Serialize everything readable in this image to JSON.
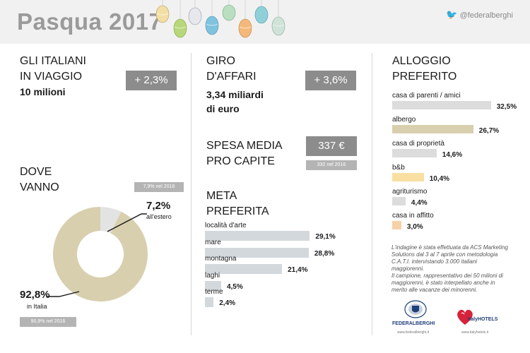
{
  "header": {
    "title": "Pasqua 2017",
    "twitter_handle": "@federalberghi"
  },
  "colors": {
    "bar_grey": "#d3d8dd",
    "bar_beige": "#d8cfae",
    "bar_yellow": "#f9dfa2",
    "bar_orange": "#f7d1a8",
    "bar_light": "#dcdcdc",
    "donut_main": "#d8cfae",
    "donut_small": "#e3e3e3",
    "pill_dark": "#8c8c8c",
    "pill_light": "#b4b4b4",
    "title_grey": "#9a9a9a"
  },
  "travelers": {
    "heading_line1": "GLI ITALIANI",
    "heading_line2": "IN VIAGGIO",
    "value": "10 milioni",
    "change": "+ 2,3%"
  },
  "turnover": {
    "heading_line1": "GIRO",
    "heading_line2": "D'AFFARI",
    "value_line1": "3,34 miliardi",
    "value_line2": "di euro",
    "change": "+ 3,6%"
  },
  "spending": {
    "heading_line1": "SPESA MEDIA",
    "heading_line2": "PRO CAPITE",
    "value": "337 €",
    "previous": "332 nel 2016"
  },
  "destination": {
    "heading_line1": "DOVE",
    "heading_line2": "VANNO",
    "abroad_previous": "7,9% nel 2016",
    "italy_previous": "90,9% nel 2016"
  },
  "meta": {
    "heading_line1": "META",
    "heading_line2": "PREFERITA"
  },
  "alloggio": {
    "heading_line1": "ALLOGGIO",
    "heading_line2": "PREFERITO"
  },
  "survey_note": {
    "line1": "L'indagine è stata effettuata da ACS Marketing",
    "line2": "Solutions dal 3 al 7 aprile con metodologia",
    "line3": "C.A.T.I. intervistando 3.000 italiani",
    "line4": "maggiorenni.",
    "line5": "Il campione, rappresentativo dei 50 milioni di",
    "line6": "maggiorenni, è stato interpellato anche in",
    "line7": "merito alle vacanze dei minorenni."
  },
  "logos": {
    "federalberghi": "FEDERALBERGHI",
    "federalberghi_url": "www.federalberghi.it",
    "italyhotels_a": "ItalyHOTELS",
    "italyhotels_url": "www.italyhotels.it"
  },
  "chart_data": [
    {
      "type": "pie",
      "categories": [
        "in Italia",
        "all'estero"
      ],
      "values": [
        92.8,
        7.2
      ],
      "value_labels": [
        "92,8%",
        "7,2%"
      ]
    },
    {
      "type": "bar",
      "categories": [
        "località d'arte",
        "mare",
        "montagna",
        "laghi",
        "terme"
      ],
      "values": [
        29.1,
        28.8,
        21.4,
        4.5,
        2.4
      ],
      "value_labels": [
        "29,1%",
        "28,8%",
        "21,4%",
        "4,5%",
        "2,4%"
      ]
    },
    {
      "type": "bar",
      "categories": [
        "casa di parenti / amici",
        "albergo",
        "casa di proprietà",
        "b&b",
        "agriturismo",
        "casa in affitto"
      ],
      "values": [
        32.5,
        26.7,
        14.6,
        10.4,
        4.4,
        3.0
      ],
      "value_labels": [
        "32,5%",
        "26,7%",
        "14,6%",
        "10,4%",
        "4,4%",
        "3,0%"
      ]
    }
  ]
}
